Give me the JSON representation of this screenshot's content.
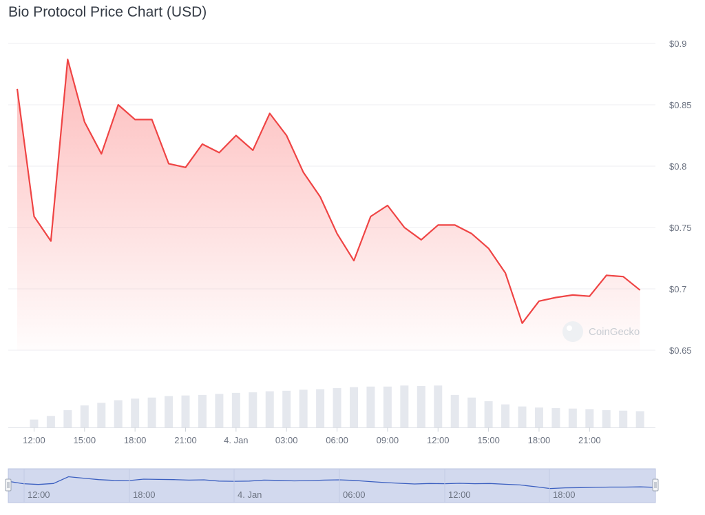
{
  "title": "Bio Protocol Price Chart (USD)",
  "watermark": "CoinGecko",
  "colors": {
    "line": "#ef4444",
    "area_top": "#fca5a5",
    "volume": "#e5e8ee",
    "grid": "#eceef2",
    "navigator_fill": "#d2d9ee",
    "navigator_line": "#3b5fc0"
  },
  "chart_data": {
    "type": "line",
    "price": {
      "series_name": "",
      "y_ticks": [
        0.65,
        0.7,
        0.75,
        0.8,
        0.85,
        0.9
      ],
      "y_tick_labels": [
        "$0.65",
        "$0.7",
        "$0.75",
        "$0.8",
        "$0.85",
        "$0.9"
      ],
      "ylim": [
        0.65,
        0.9
      ],
      "y_axis_position": "right",
      "x_hours": [
        0,
        1,
        2,
        3,
        4,
        5,
        6,
        7,
        8,
        9,
        10,
        11,
        12,
        13,
        14,
        15,
        16,
        17,
        18,
        19,
        20,
        21,
        22,
        23,
        24,
        25,
        26,
        27,
        28,
        29,
        30,
        31,
        32,
        33,
        34,
        35,
        36,
        37
      ],
      "values": [
        0.863,
        0.759,
        0.739,
        0.887,
        0.836,
        0.81,
        0.85,
        0.838,
        0.838,
        0.802,
        0.799,
        0.818,
        0.811,
        0.825,
        0.813,
        0.843,
        0.825,
        0.795,
        0.775,
        0.745,
        0.723,
        0.759,
        0.768,
        0.75,
        0.74,
        0.752,
        0.752,
        0.745,
        0.733,
        0.713,
        0.672,
        0.69,
        0.693,
        0.695,
        0.694,
        0.711,
        0.71,
        0.699
      ],
      "volume": [
        0.0,
        0.15,
        0.22,
        0.33,
        0.42,
        0.47,
        0.52,
        0.55,
        0.57,
        0.6,
        0.61,
        0.62,
        0.64,
        0.66,
        0.67,
        0.69,
        0.7,
        0.72,
        0.73,
        0.75,
        0.77,
        0.78,
        0.78,
        0.8,
        0.79,
        0.8,
        0.62,
        0.57,
        0.5,
        0.44,
        0.4,
        0.38,
        0.37,
        0.36,
        0.35,
        0.33,
        0.32,
        0.31
      ]
    },
    "x_ticks": [
      {
        "hour": 1,
        "label": "12:00"
      },
      {
        "hour": 4,
        "label": "15:00"
      },
      {
        "hour": 7,
        "label": "18:00"
      },
      {
        "hour": 10,
        "label": "21:00"
      },
      {
        "hour": 13,
        "label": "4. Jan"
      },
      {
        "hour": 16,
        "label": "03:00"
      },
      {
        "hour": 19,
        "label": "06:00"
      },
      {
        "hour": 22,
        "label": "09:00"
      },
      {
        "hour": 25,
        "label": "12:00"
      },
      {
        "hour": 28,
        "label": "15:00"
      },
      {
        "hour": 31,
        "label": "18:00"
      },
      {
        "hour": 34,
        "label": "21:00"
      }
    ],
    "navigator": {
      "ticks": [
        "12:00",
        "18:00",
        "4. Jan",
        "06:00",
        "12:00",
        "18:00"
      ],
      "values": [
        0.71,
        0.61,
        0.58,
        0.62,
        0.9,
        0.84,
        0.78,
        0.75,
        0.74,
        0.8,
        0.79,
        0.78,
        0.76,
        0.77,
        0.72,
        0.71,
        0.72,
        0.76,
        0.75,
        0.73,
        0.74,
        0.76,
        0.77,
        0.75,
        0.7,
        0.66,
        0.63,
        0.6,
        0.62,
        0.61,
        0.63,
        0.61,
        0.62,
        0.59,
        0.56,
        0.49,
        0.41,
        0.44,
        0.45,
        0.46,
        0.47,
        0.47,
        0.48,
        0.46
      ]
    },
    "grid": true,
    "legend": "none"
  }
}
